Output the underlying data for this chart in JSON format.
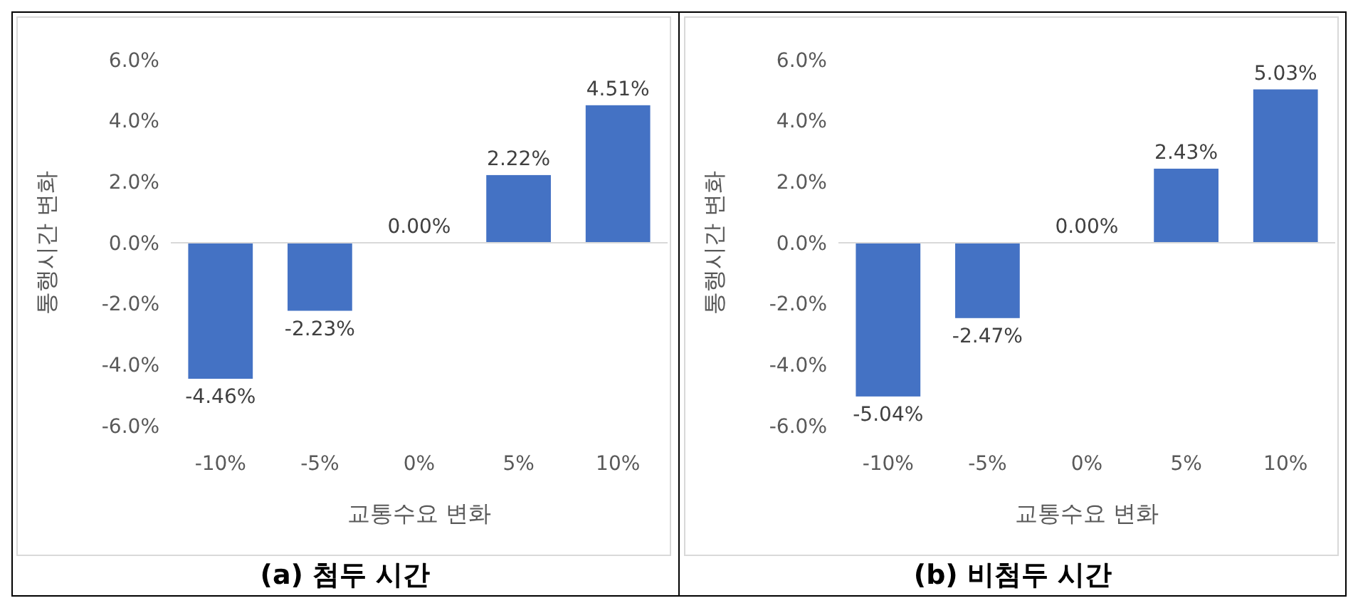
{
  "chart_data": [
    {
      "type": "bar",
      "title": "(a) 첨두 시간",
      "xlabel": "교통수요 변화",
      "ylabel": "통행시간 변화",
      "categories": [
        "-10%",
        "-5%",
        "0%",
        "5%",
        "10%"
      ],
      "values": [
        -4.46,
        -2.23,
        0,
        2.22,
        4.51
      ],
      "value_labels": [
        "-4.46%",
        "-2.23%",
        "0.00%",
        "2.22%",
        "4.51%"
      ],
      "color": "#4472c4",
      "ylim": [
        -6,
        6
      ],
      "yticks": [
        {
          "value": -6,
          "label": "-6.0%"
        },
        {
          "value": -4,
          "label": "-4.0%"
        },
        {
          "value": -2,
          "label": "-2.0%"
        },
        {
          "value": 0,
          "label": "0.0%"
        },
        {
          "value": 2,
          "label": "2.0%"
        },
        {
          "value": 4,
          "label": "4.0%"
        },
        {
          "value": 6,
          "label": "6.0%"
        }
      ]
    },
    {
      "type": "bar",
      "title": "(b) 비첨두 시간",
      "xlabel": "교통수요 변화",
      "ylabel": "통행시간 변화",
      "categories": [
        "-10%",
        "-5%",
        "0%",
        "5%",
        "10%"
      ],
      "values": [
        -5.04,
        -2.47,
        0,
        2.43,
        5.03
      ],
      "value_labels": [
        "-5.04%",
        "-2.47%",
        "0.00%",
        "2.43%",
        "5.03%"
      ],
      "color": "#4472c4",
      "ylim": [
        -6,
        6
      ],
      "yticks": [
        {
          "value": -6,
          "label": "-6.0%"
        },
        {
          "value": -4,
          "label": "-4.0%"
        },
        {
          "value": -2,
          "label": "-2.0%"
        },
        {
          "value": 0,
          "label": "0.0%"
        },
        {
          "value": 2,
          "label": "2.0%"
        },
        {
          "value": 4,
          "label": "4.0%"
        },
        {
          "value": 6,
          "label": "6.0%"
        }
      ]
    }
  ]
}
